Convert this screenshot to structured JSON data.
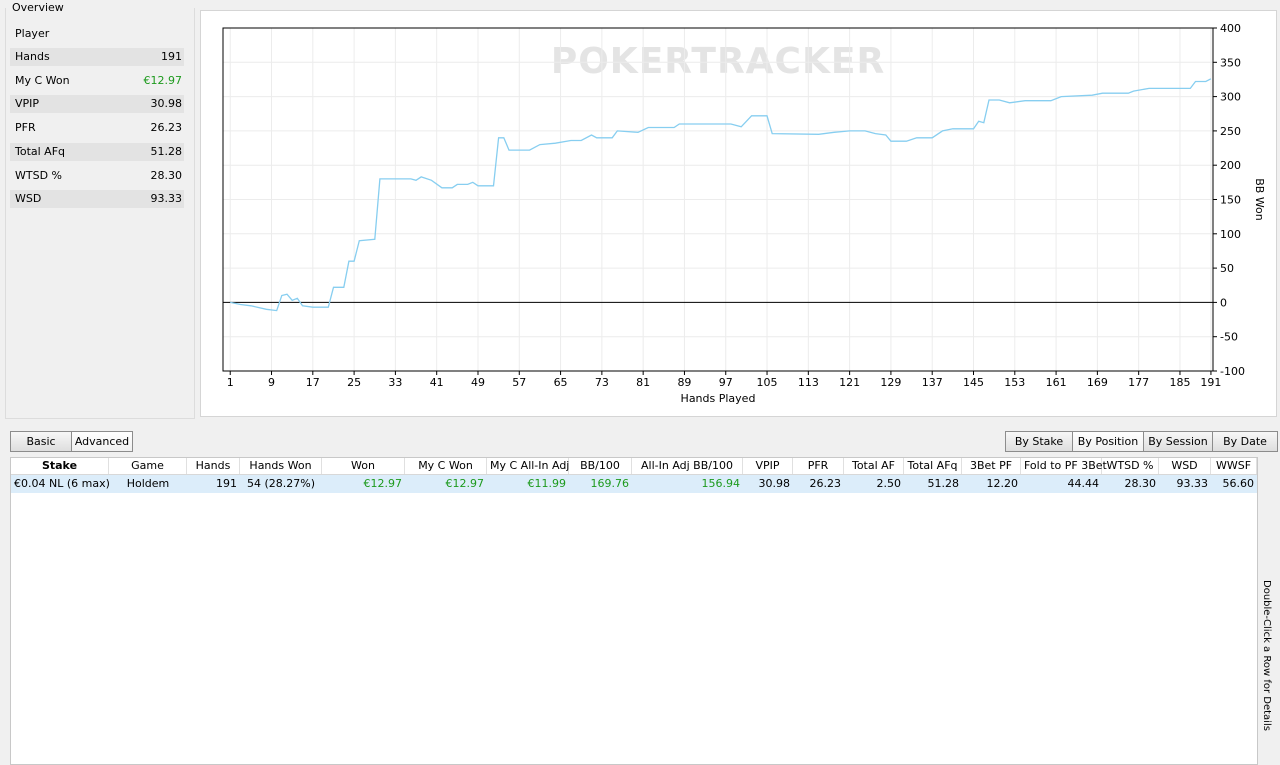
{
  "overview": {
    "title": "Overview",
    "player_label": "Player",
    "rows": [
      [
        "Hands",
        "191"
      ],
      [
        "My C Won",
        "€12.97"
      ],
      [
        "VPIP",
        "30.98"
      ],
      [
        "PFR",
        "26.23"
      ],
      [
        "Total AFq",
        "51.28"
      ],
      [
        "WTSD %",
        "28.30"
      ],
      [
        "WSD",
        "93.33"
      ]
    ]
  },
  "chart_data": {
    "type": "line",
    "watermark": "POKERTRACKER",
    "xlabel": "Hands Played",
    "ylabel": "BB Won",
    "color": "#87cef0",
    "x": [
      1,
      3,
      5,
      8,
      10,
      11,
      12,
      13,
      14,
      15,
      17,
      20,
      21,
      23,
      24,
      25,
      26,
      29,
      30,
      36,
      37,
      38,
      40,
      42,
      44,
      45,
      47,
      48,
      49,
      52,
      53,
      54,
      55,
      59,
      61,
      64,
      67,
      69,
      71,
      72,
      75,
      76,
      80,
      82,
      87,
      88,
      98,
      100,
      102,
      105,
      106,
      115,
      118,
      121,
      124,
      126,
      128,
      129,
      132,
      134,
      137,
      139,
      141,
      145,
      146,
      147,
      148,
      150,
      152,
      155,
      160,
      162,
      168,
      170,
      175,
      176,
      179,
      187,
      188,
      190,
      191
    ],
    "values": [
      0,
      -3,
      -5,
      -10,
      -12,
      10,
      12,
      3,
      6,
      -5,
      -7,
      -7,
      22,
      22,
      60,
      60,
      90,
      92,
      180,
      180,
      178,
      183,
      178,
      167,
      167,
      172,
      172,
      175,
      170,
      170,
      240,
      240,
      222,
      222,
      230,
      232,
      236,
      236,
      244,
      240,
      240,
      250,
      248,
      255,
      255,
      260,
      260,
      256,
      272,
      272,
      246,
      245,
      248,
      250,
      250,
      246,
      244,
      235,
      235,
      240,
      240,
      250,
      253,
      253,
      264,
      262,
      295,
      295,
      291,
      294,
      294,
      300,
      302,
      305,
      305,
      308,
      312,
      312,
      322,
      322,
      326
    ],
    "xlim": [
      -0.4,
      191.4
    ],
    "ylim": [
      -100,
      400
    ],
    "xticks": [
      1,
      9,
      17,
      25,
      33,
      41,
      49,
      57,
      65,
      73,
      81,
      89,
      97,
      105,
      113,
      121,
      129,
      137,
      145,
      153,
      161,
      169,
      177,
      185,
      191
    ],
    "yticks": [
      -100,
      -50,
      0,
      50,
      100,
      150,
      200,
      250,
      300,
      350,
      400
    ],
    "grid": true
  },
  "toolbar": {
    "left": [
      "Basic",
      "Advanced"
    ],
    "right": [
      "By Stake",
      "By Position",
      "By Session",
      "By Date"
    ]
  },
  "table": {
    "headers": [
      "Stake",
      "Game",
      "Hands",
      "Hands Won",
      "Won",
      "My C Won",
      "My C All-In Adj",
      "BB/100",
      "All-In Adj BB/100",
      "VPIP",
      "PFR",
      "Total AF",
      "Total AFq",
      "3Bet PF",
      "Fold to PF 3Bet",
      "WTSD %",
      "WSD",
      "WWSF"
    ],
    "rows": [
      [
        "€0.04 NL (6 max)",
        "Holdem",
        "191",
        "54 (28.27%)",
        "€12.97",
        "€12.97",
        "€11.99",
        "169.76",
        "156.94",
        "30.98",
        "26.23",
        "2.50",
        "51.28",
        "12.20",
        "44.44",
        "28.30",
        "93.33",
        "56.60"
      ]
    ]
  },
  "hint": "Double-Click a Row for Details"
}
